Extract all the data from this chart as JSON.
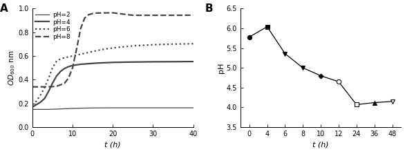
{
  "panel_A": {
    "xlabel": "t (h)",
    "xlim": [
      0,
      40
    ],
    "ylim": [
      0.0,
      1.0
    ],
    "yticks": [
      0.0,
      0.2,
      0.4,
      0.6,
      0.8,
      1.0
    ],
    "xticks": [
      0,
      10,
      20,
      30,
      40
    ],
    "lines": [
      {
        "label": "pH=2",
        "style": "solid",
        "color": "#444444",
        "linewidth": 0.9,
        "x": [
          0,
          2,
          4,
          6,
          8,
          10,
          12,
          15,
          20,
          25,
          30,
          35,
          40
        ],
        "y": [
          0.15,
          0.15,
          0.15,
          0.152,
          0.155,
          0.158,
          0.16,
          0.162,
          0.163,
          0.163,
          0.163,
          0.163,
          0.163
        ]
      },
      {
        "label": "pH=4",
        "style": "solid",
        "color": "#444444",
        "linewidth": 1.6,
        "x": [
          0,
          1,
          2,
          3,
          4,
          5,
          6,
          7,
          8,
          9,
          10,
          11,
          12,
          14,
          16,
          18,
          20,
          25,
          30,
          35,
          40
        ],
        "y": [
          0.17,
          0.19,
          0.21,
          0.24,
          0.3,
          0.37,
          0.43,
          0.47,
          0.495,
          0.51,
          0.52,
          0.525,
          0.53,
          0.535,
          0.54,
          0.543,
          0.546,
          0.549,
          0.551,
          0.552,
          0.553
        ]
      },
      {
        "label": "pH=6",
        "style": "dotted",
        "color": "#444444",
        "linewidth": 1.6,
        "x": [
          0,
          1,
          2,
          3,
          4,
          5,
          6,
          7,
          8,
          9,
          10,
          12,
          14,
          16,
          18,
          20,
          22,
          25,
          30,
          35,
          40
        ],
        "y": [
          0.19,
          0.22,
          0.27,
          0.33,
          0.41,
          0.5,
          0.555,
          0.575,
          0.585,
          0.593,
          0.6,
          0.615,
          0.63,
          0.645,
          0.658,
          0.668,
          0.675,
          0.685,
          0.695,
          0.7,
          0.703
        ]
      },
      {
        "label": "pH=8",
        "style": "dashed",
        "color": "#444444",
        "linewidth": 1.6,
        "x": [
          0,
          2,
          4,
          6,
          8,
          9,
          10,
          11,
          12,
          13,
          14,
          15,
          16,
          18,
          20,
          25,
          30,
          35,
          40
        ],
        "y": [
          0.34,
          0.34,
          0.34,
          0.344,
          0.37,
          0.415,
          0.5,
          0.66,
          0.83,
          0.92,
          0.948,
          0.958,
          0.962,
          0.963,
          0.964,
          0.943,
          0.943,
          0.943,
          0.944
        ]
      }
    ],
    "legend_labels": [
      "pH=2",
      "pH=4",
      "pH=6",
      "pH=8"
    ],
    "legend_styles": [
      "solid",
      "solid",
      "dotted",
      "dashed"
    ],
    "legend_lws": [
      0.9,
      1.6,
      1.6,
      1.6
    ]
  },
  "panel_B": {
    "xlabel": "t (h)",
    "ylabel": "pH",
    "ylim": [
      3.5,
      6.5
    ],
    "yticks": [
      3.5,
      4.0,
      4.5,
      5.0,
      5.5,
      6.0,
      6.5
    ],
    "x_labels": [
      "0",
      "4",
      "6",
      "8",
      "10",
      "12",
      "24",
      "36",
      "48"
    ],
    "points": [
      {
        "xi": 0,
        "y": 5.78,
        "marker": "o",
        "filled": true,
        "size": 4.5
      },
      {
        "xi": 1,
        "y": 6.04,
        "marker": "s",
        "filled": true,
        "size": 4.5
      },
      {
        "xi": 2,
        "y": 5.36,
        "marker": "v",
        "filled": true,
        "size": 5
      },
      {
        "xi": 3,
        "y": 5.0,
        "marker": "v",
        "filled": true,
        "size": 5
      },
      {
        "xi": 4,
        "y": 4.8,
        "marker": "D",
        "filled": true,
        "size": 3.5
      },
      {
        "xi": 5,
        "y": 4.65,
        "marker": "o",
        "filled": false,
        "size": 4.5
      },
      {
        "xi": 6,
        "y": 4.07,
        "marker": "s",
        "filled": false,
        "size": 4.5
      },
      {
        "xi": 7,
        "y": 4.12,
        "marker": "^",
        "filled": true,
        "size": 4.5
      },
      {
        "xi": 8,
        "y": 4.15,
        "marker": "v",
        "filled": false,
        "size": 5
      }
    ]
  }
}
